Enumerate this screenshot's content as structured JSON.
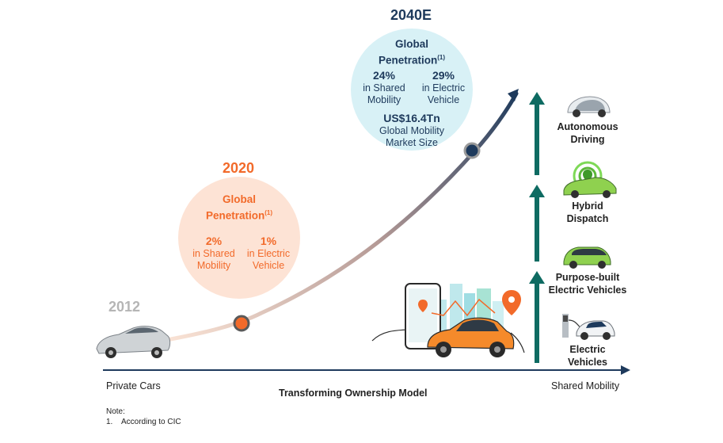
{
  "milestones": {
    "y2012": {
      "year": "2012"
    },
    "y2020": {
      "year": "2020",
      "heading": "Global",
      "heading2": "Penetration",
      "footnote_ref": "(1)",
      "shared": {
        "value": "2%",
        "line1": "in Shared",
        "line2": "Mobility"
      },
      "electric": {
        "value": "1%",
        "line1": "in Electric",
        "line2": "Vehicle"
      }
    },
    "y2040": {
      "year": "2040E",
      "heading": "Global",
      "heading2": "Penetration",
      "footnote_ref": "(1)",
      "shared": {
        "value": "24%",
        "line1": "in Shared",
        "line2": "Mobility"
      },
      "electric": {
        "value": "29%",
        "line1": "in Electric",
        "line2": "Vehicle"
      },
      "market": {
        "value": "US$16.4Tn",
        "line1": "Global Mobility",
        "line2": "Market Size"
      }
    }
  },
  "stages": [
    {
      "line1": "Autonomous",
      "line2": "Driving",
      "icon": "autonomous-car-icon"
    },
    {
      "line1": "Hybrid",
      "line2": "Dispatch",
      "icon": "dispatch-car-icon"
    },
    {
      "line1": "Purpose-built",
      "line2": "Electric Vehicles",
      "icon": "green-ev-icon"
    },
    {
      "line1": "Electric",
      "line2": "Vehicles",
      "icon": "charging-ev-icon"
    }
  ],
  "axis": {
    "left_label": "Private Cars",
    "center_label": "Transforming Ownership Model",
    "right_label": "Shared Mobility"
  },
  "note": {
    "title": "Note:",
    "item_number": "1.",
    "item_text": "According to CIC"
  },
  "colors": {
    "orange": "#f26a2a",
    "peach": "#fde3d5",
    "light_blue": "#d8f1f6",
    "navy": "#1e3a5c",
    "teal": "#0e6b62",
    "gray_year": "#b5b5b5"
  }
}
